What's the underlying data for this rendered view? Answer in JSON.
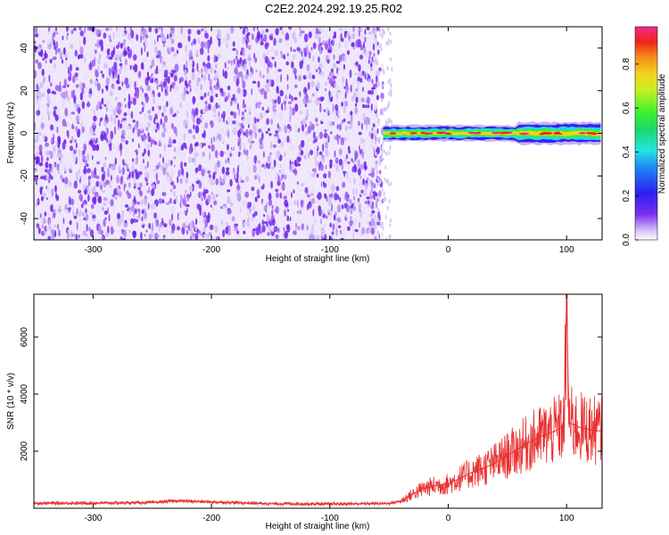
{
  "figure_title": "C2E2.2024.292.19.25.R02",
  "colors": {
    "snr_line": "#e83030",
    "background": "#ffffff",
    "axis": "#000000"
  },
  "chart_data": [
    {
      "type": "heatmap",
      "title": "C2E2.2024.292.19.25.R02",
      "xlabel": "Height of straight line (km)",
      "ylabel": "Frequency (Hz)",
      "xlim": [
        -350,
        130
      ],
      "ylim": [
        -50,
        50
      ],
      "x_ticks": [
        "-300",
        "-200",
        "-100",
        "0",
        "100"
      ],
      "y_ticks": [
        "40",
        "20",
        "0",
        "-20",
        "-40"
      ],
      "noise_region_km": [
        -350,
        -55
      ],
      "signal_band_center_hz": 0,
      "signal_band_halfwidth_hz": [
        2,
        3
      ],
      "colorbar": {
        "label": "Normalized spectral amplitude",
        "range": [
          0,
          0.97
        ],
        "ticks": [
          "0.0",
          "0.2",
          "0.4",
          "0.6",
          "0.8"
        ],
        "colormap": "rainbow (white-purple-blue-cyan-green-yellow-orange-red-magenta)"
      }
    },
    {
      "type": "line",
      "title": "",
      "xlabel": "Height of straight line (km)",
      "ylabel": "SNR (10 * v/v)",
      "xlim": [
        -350,
        130
      ],
      "ylim": [
        0,
        7500
      ],
      "x_ticks": [
        "-300",
        "-200",
        "-100",
        "0",
        "100"
      ],
      "y_ticks": [
        "2000",
        "4000",
        "6000"
      ],
      "series": [
        {
          "x": [
            -350,
            -300,
            -250,
            -230,
            -200,
            -150,
            -100,
            -50,
            -40,
            -30,
            -20,
            -10,
            0,
            10,
            20,
            30,
            40,
            50,
            60,
            70,
            80,
            90,
            98,
            100,
            102,
            110,
            120,
            130
          ],
          "y": [
            180,
            180,
            200,
            260,
            220,
            160,
            150,
            170,
            250,
            500,
            700,
            800,
            850,
            1050,
            1250,
            1400,
            1600,
            1850,
            2100,
            2350,
            2550,
            2700,
            2900,
            7300,
            3000,
            2850,
            2750,
            2700
          ]
        }
      ],
      "grid": false
    }
  ]
}
